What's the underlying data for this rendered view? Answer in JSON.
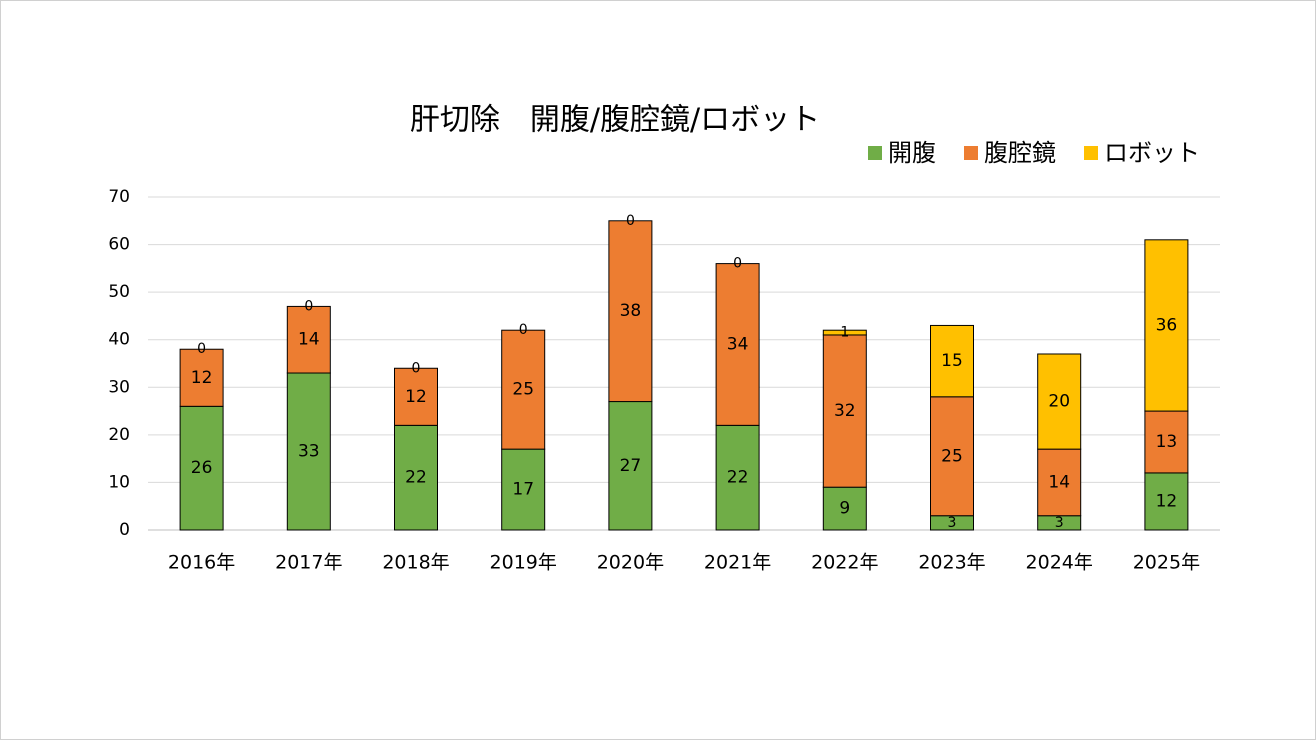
{
  "chart_data": {
    "type": "stacked_bar",
    "title": "肝切除　開腹/腹腔鏡/ロボット",
    "categories": [
      "2016年",
      "2017年",
      "2018年",
      "2019年",
      "2020年",
      "2021年",
      "2022年",
      "2023年",
      "2024年",
      "2025年"
    ],
    "series": [
      {
        "name": "開腹",
        "color": "#70ad47",
        "values": [
          26,
          33,
          22,
          17,
          27,
          22,
          9,
          3,
          3,
          12
        ]
      },
      {
        "name": "腹腔鏡",
        "color": "#ed7d31",
        "values": [
          12,
          14,
          12,
          25,
          38,
          34,
          32,
          25,
          14,
          13
        ]
      },
      {
        "name": "ロボット",
        "color": "#ffc000",
        "values": [
          0,
          0,
          0,
          0,
          0,
          0,
          1,
          15,
          20,
          36
        ]
      }
    ],
    "ylim": [
      0,
      70
    ],
    "yticks": [
      0,
      10,
      20,
      30,
      40,
      50,
      60,
      70
    ],
    "grid": true,
    "legend": "top-right"
  }
}
